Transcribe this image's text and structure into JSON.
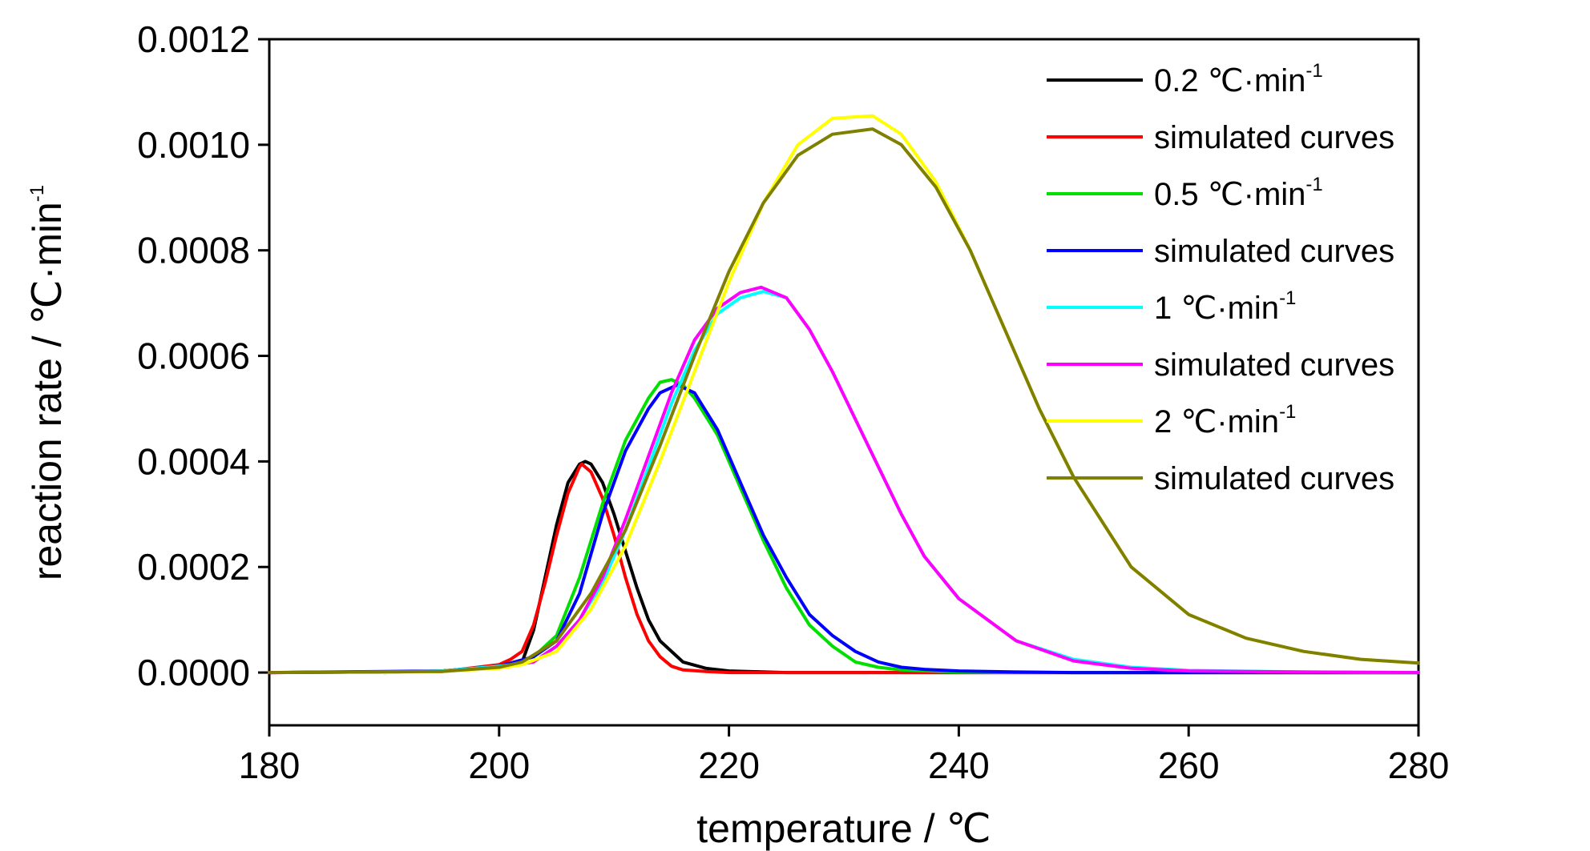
{
  "chart_data": {
    "type": "line",
    "xlabel": "temperature / ℃",
    "ylabel": "reaction rate / ℃·min",
    "ylabel_sup": "-1",
    "xlim": [
      180,
      280
    ],
    "ylim": [
      -0.0001,
      0.0012
    ],
    "x_ticks": [
      180,
      200,
      220,
      240,
      260,
      280
    ],
    "x_tick_labels": [
      "180",
      "200",
      "220",
      "240",
      "260",
      "280"
    ],
    "y_ticks": [
      0.0,
      0.0002,
      0.0004,
      0.0006,
      0.0008,
      0.001,
      0.0012
    ],
    "y_tick_labels": [
      "0.0000",
      "0.0002",
      "0.0004",
      "0.0006",
      "0.0008",
      "0.0010",
      "0.0012"
    ],
    "grid": false,
    "legend_position": "top-right",
    "series": [
      {
        "name": "0.2 ℃·min",
        "name_sup": "-1",
        "color": "#000000",
        "peak_x": 207.5,
        "peak_y": 0.0004,
        "x": [
          190,
          195,
          200,
          202,
          203,
          204,
          205,
          206,
          207,
          207.5,
          208,
          209,
          210,
          211,
          212,
          213,
          214,
          216,
          218,
          220,
          225,
          230,
          280
        ],
        "y": [
          0,
          3e-06,
          1.2e-05,
          2e-05,
          8e-05,
          0.00018,
          0.00028,
          0.00036,
          0.000395,
          0.0004,
          0.000395,
          0.00036,
          0.0003,
          0.00023,
          0.00016,
          0.0001,
          6e-05,
          2e-05,
          8e-06,
          3e-06,
          0,
          0,
          0
        ]
      },
      {
        "name": "simulated curves",
        "color": "#ff0000",
        "peak_x": 207.2,
        "peak_y": 0.000395,
        "x": [
          180,
          195,
          200,
          201,
          202,
          203,
          204,
          205,
          206,
          207,
          207.2,
          208,
          209,
          210,
          211,
          212,
          213,
          214,
          215,
          216,
          218,
          220,
          230,
          280
        ],
        "y": [
          0,
          2e-06,
          1.5e-05,
          2.5e-05,
          4e-05,
          9e-05,
          0.00017,
          0.00026,
          0.00034,
          0.00039,
          0.000395,
          0.00038,
          0.00033,
          0.00026,
          0.00018,
          0.00011,
          6e-05,
          3e-05,
          1.2e-05,
          5e-06,
          2e-06,
          0,
          0,
          0
        ]
      },
      {
        "name": "0.5 ℃·min",
        "name_sup": "-1",
        "color": "#00e000",
        "peak_x": 215,
        "peak_y": 0.000555,
        "x": [
          190,
          195,
          200,
          203,
          205,
          207,
          209,
          211,
          213,
          214,
          215,
          216,
          217,
          219,
          221,
          223,
          225,
          227,
          229,
          231,
          233,
          235,
          240,
          250,
          280
        ],
        "y": [
          0,
          3e-06,
          1e-05,
          3e-05,
          7e-05,
          0.00018,
          0.00032,
          0.00044,
          0.00052,
          0.00055,
          0.000555,
          0.000545,
          0.00052,
          0.00045,
          0.00035,
          0.00025,
          0.00016,
          9e-05,
          5e-05,
          2e-05,
          1e-05,
          5e-06,
          1e-06,
          0,
          0
        ]
      },
      {
        "name": "simulated curves",
        "color": "#0000ff",
        "peak_x": 215.5,
        "peak_y": 0.000545,
        "x": [
          180,
          195,
          200,
          203,
          205,
          207,
          209,
          211,
          213,
          214,
          215.5,
          217,
          219,
          221,
          223,
          225,
          227,
          229,
          231,
          233,
          235,
          237,
          240,
          245,
          250,
          280
        ],
        "y": [
          0,
          3e-06,
          1.2e-05,
          3e-05,
          6e-05,
          0.00015,
          0.0003,
          0.00042,
          0.0005,
          0.00053,
          0.000545,
          0.00053,
          0.00046,
          0.00036,
          0.00026,
          0.00018,
          0.00011,
          7e-05,
          4e-05,
          2e-05,
          1e-05,
          6e-06,
          3e-06,
          1e-06,
          0,
          0
        ]
      },
      {
        "name": "1 ℃·min",
        "name_sup": "-1",
        "color": "#00ffff",
        "peak_x": 223,
        "peak_y": 0.000722,
        "x": [
          190,
          195,
          200,
          203,
          205,
          207,
          209,
          211,
          213,
          215,
          217,
          219,
          221,
          223,
          225,
          227,
          229,
          231,
          233,
          235,
          237,
          240,
          245,
          250,
          255,
          260,
          270,
          280
        ],
        "y": [
          0,
          3e-06,
          1.2e-05,
          2e-05,
          5e-05,
          0.0001,
          0.00017,
          0.00027,
          0.00039,
          0.00051,
          0.00061,
          0.00068,
          0.00071,
          0.000722,
          0.00071,
          0.00065,
          0.00057,
          0.00048,
          0.00039,
          0.0003,
          0.00022,
          0.00014,
          6e-05,
          2.5e-05,
          1e-05,
          4e-06,
          1e-06,
          0
        ]
      },
      {
        "name": "simulated curves",
        "color": "#ff00ff",
        "peak_x": 222.8,
        "peak_y": 0.00073,
        "x": [
          180,
          195,
          200,
          203,
          205,
          207,
          209,
          211,
          213,
          215,
          217,
          219,
          221,
          222.8,
          225,
          227,
          229,
          231,
          233,
          235,
          237,
          240,
          245,
          250,
          255,
          260,
          270,
          280
        ],
        "y": [
          0,
          2e-06,
          1e-05,
          2e-05,
          5e-05,
          0.0001,
          0.00018,
          0.00029,
          0.00041,
          0.00053,
          0.00063,
          0.00069,
          0.00072,
          0.00073,
          0.00071,
          0.00065,
          0.00057,
          0.00048,
          0.00039,
          0.0003,
          0.00022,
          0.00014,
          6e-05,
          2.2e-05,
          8e-06,
          3e-06,
          1e-06,
          0
        ]
      },
      {
        "name": "2 ℃·min",
        "name_sup": "-1",
        "color": "#ffff00",
        "peak_x": 232.5,
        "peak_y": 0.001055,
        "x": [
          190,
          195,
          200,
          202,
          205,
          208,
          211,
          214,
          217,
          220,
          223,
          226,
          229,
          232.5,
          235,
          238,
          241,
          244,
          247,
          250,
          255,
          260,
          265,
          270,
          275,
          280
        ],
        "y": [
          0,
          2e-06,
          8e-06,
          1.5e-05,
          4e-05,
          0.00012,
          0.00024,
          0.0004,
          0.00057,
          0.00074,
          0.00089,
          0.001,
          0.00105,
          0.001055,
          0.00102,
          0.00093,
          0.0008,
          0.00065,
          0.0005,
          0.00037,
          0.0002,
          0.00011,
          6.5e-05,
          4e-05,
          2.5e-05,
          1.8e-05
        ]
      },
      {
        "name": "simulated curves",
        "color": "#808000",
        "peak_x": 232.5,
        "peak_y": 0.00103,
        "x": [
          180,
          195,
          200,
          202,
          205,
          208,
          211,
          214,
          217,
          220,
          223,
          226,
          229,
          232.5,
          235,
          238,
          241,
          244,
          247,
          250,
          255,
          260,
          265,
          270,
          275,
          280
        ],
        "y": [
          0,
          2e-06,
          1e-05,
          2e-05,
          6e-05,
          0.00015,
          0.00027,
          0.00043,
          0.0006,
          0.00076,
          0.00089,
          0.00098,
          0.00102,
          0.00103,
          0.001,
          0.00092,
          0.0008,
          0.00065,
          0.0005,
          0.00037,
          0.0002,
          0.00011,
          6.5e-05,
          4e-05,
          2.5e-05,
          1.8e-05
        ]
      }
    ]
  }
}
